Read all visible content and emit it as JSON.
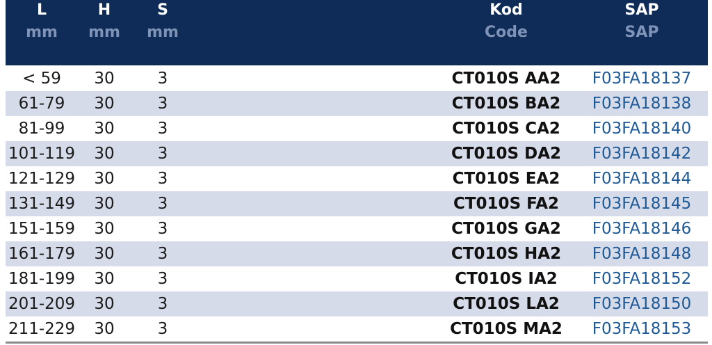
{
  "header": {
    "l": {
      "main": "L",
      "sub": "mm"
    },
    "h": {
      "main": "H",
      "sub": "mm"
    },
    "s": {
      "main": "S",
      "sub": "mm"
    },
    "kod": {
      "main": "Kod",
      "sub": "Code"
    },
    "sap": {
      "main": "SAP",
      "sub": "SAP"
    }
  },
  "rows": [
    {
      "l": "< 59",
      "h": "30",
      "s": "3",
      "kod": "CT010S AA2",
      "sap": "F03FA18137"
    },
    {
      "l": "61-79",
      "h": "30",
      "s": "3",
      "kod": "CT010S BA2",
      "sap": "F03FA18138"
    },
    {
      "l": "81-99",
      "h": "30",
      "s": "3",
      "kod": "CT010S CA2",
      "sap": "F03FA18140"
    },
    {
      "l": "101-119",
      "h": "30",
      "s": "3",
      "kod": "CT010S DA2",
      "sap": "F03FA18142"
    },
    {
      "l": "121-129",
      "h": "30",
      "s": "3",
      "kod": "CT010S EA2",
      "sap": "F03FA18144"
    },
    {
      "l": "131-149",
      "h": "30",
      "s": "3",
      "kod": "CT010S FA2",
      "sap": "F03FA18145"
    },
    {
      "l": "151-159",
      "h": "30",
      "s": "3",
      "kod": "CT010S GA2",
      "sap": "F03FA18146"
    },
    {
      "l": "161-179",
      "h": "30",
      "s": "3",
      "kod": "CT010S HA2",
      "sap": "F03FA18148"
    },
    {
      "l": "181-199",
      "h": "30",
      "s": "3",
      "kod": "CT010S IA2",
      "sap": "F03FA18152"
    },
    {
      "l": "201-209",
      "h": "30",
      "s": "3",
      "kod": "CT010S LA2",
      "sap": "F03FA18150"
    },
    {
      "l": "211-229",
      "h": "30",
      "s": "3",
      "kod": "CT010S MA2",
      "sap": "F03FA18153"
    }
  ]
}
